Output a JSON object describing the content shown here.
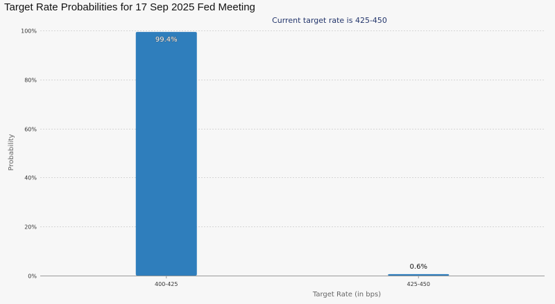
{
  "page": {
    "title": "Target Rate Probabilities for 17 Sep 2025 Fed Meeting"
  },
  "chart_data": {
    "type": "bar",
    "title": "Target Rate Probabilities for 17 Sep 2025 Fed Meeting",
    "subtitle": "Current target rate is 425-450",
    "categories": [
      "400-425",
      "425-450"
    ],
    "values": [
      99.4,
      0.6
    ],
    "data_labels": [
      "99.4%",
      "0.6%"
    ],
    "xlabel": "Target Rate (in bps)",
    "ylabel": "Probability",
    "ylim": [
      0,
      100
    ],
    "yticks": [
      "0%",
      "20%",
      "40%",
      "60%",
      "80%",
      "100%"
    ],
    "grid": true,
    "legend": "none",
    "colors": {
      "bar": "#2f7ebc",
      "grid": "#d4d4d4",
      "subtitle": "#23356b"
    }
  }
}
